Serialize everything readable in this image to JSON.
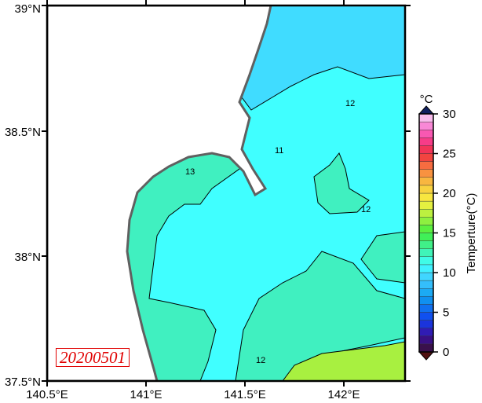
{
  "map": {
    "lon_range": [
      140.5,
      142.31
    ],
    "lat_range": [
      37.5,
      39.0
    ],
    "x_ticks": [
      "140.5°E",
      "141°E",
      "141.5°E",
      "142°E"
    ],
    "y_ticks": [
      "37.5°N",
      "38°N",
      "38.5°N",
      "39°N"
    ],
    "date_label": "20200501",
    "contour_labels": [
      "13",
      "11",
      "12",
      "12",
      "12"
    ],
    "colors": {
      "land": "#ffffff",
      "coast": "#606060",
      "sea_10": "#40dcff",
      "sea_11": "#40ffff",
      "sea_13": "#40f0c0",
      "sea_16": "#a8f040",
      "date": "#e00000"
    }
  },
  "colorbar": {
    "unit": "°C",
    "title": "Temperture(°C)",
    "ticks": [
      "0",
      "5",
      "10",
      "15",
      "20",
      "25",
      "30"
    ],
    "range": [
      0,
      30
    ],
    "step": 1,
    "extend": "both"
  }
}
